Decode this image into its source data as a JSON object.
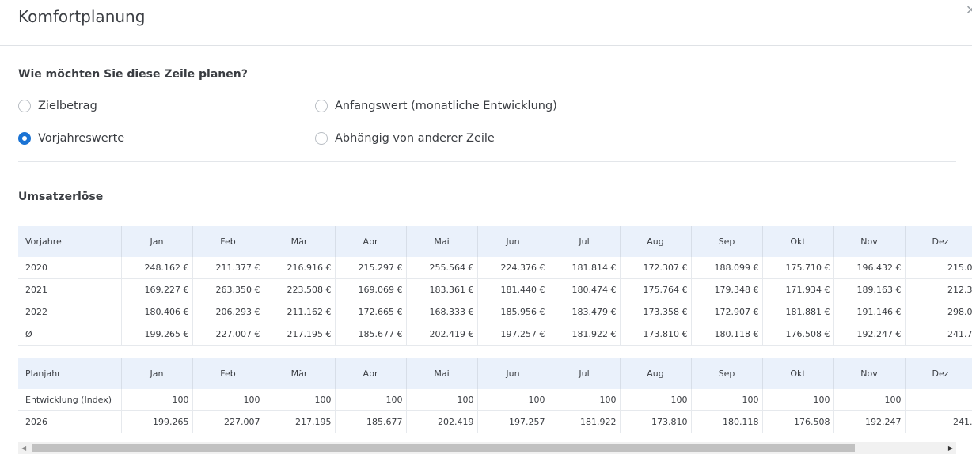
{
  "dialog": {
    "title": "Komfortplanung"
  },
  "question": "Wie möchten Sie diese Zeile planen?",
  "options": [
    {
      "label": "Zielbetrag",
      "selected": false
    },
    {
      "label": "Anfangswert (monatliche Entwicklung)",
      "selected": false
    },
    {
      "label": "Vorjahreswerte",
      "selected": true
    },
    {
      "label": "Abhängig von anderer Zeile",
      "selected": false
    }
  ],
  "section_title": "Umsatzerlöse",
  "months": [
    "Jan",
    "Feb",
    "Mär",
    "Apr",
    "Mai",
    "Jun",
    "Jul",
    "Aug",
    "Sep",
    "Okt",
    "Nov",
    "Dez"
  ],
  "previous_years": {
    "header": "Vorjahre",
    "rows": [
      {
        "label": "2020",
        "values": [
          "248.162 €",
          "211.377 €",
          "216.916 €",
          "215.297 €",
          "255.564 €",
          "224.376 €",
          "181.814 €",
          "172.307 €",
          "188.099 €",
          "175.710 €",
          "196.432 €",
          "215.0"
        ]
      },
      {
        "label": "2021",
        "values": [
          "169.227 €",
          "263.350 €",
          "223.508 €",
          "169.069 €",
          "183.361 €",
          "181.440 €",
          "180.474 €",
          "175.764 €",
          "179.348 €",
          "171.934 €",
          "189.163 €",
          "212.3"
        ]
      },
      {
        "label": "2022",
        "values": [
          "180.406 €",
          "206.293 €",
          "211.162 €",
          "172.665 €",
          "168.333 €",
          "185.956 €",
          "183.479 €",
          "173.358 €",
          "172.907 €",
          "181.881 €",
          "191.146 €",
          "298.0"
        ]
      },
      {
        "label": "Ø",
        "values": [
          "199.265 €",
          "227.007 €",
          "217.195 €",
          "185.677 €",
          "202.419 €",
          "197.257 €",
          "181.922 €",
          "173.810 €",
          "180.118 €",
          "176.508 €",
          "192.247 €",
          "241.7"
        ]
      }
    ]
  },
  "plan_year": {
    "header": "Planjahr",
    "rows": [
      {
        "label": "Entwicklung (Index)",
        "values": [
          "100",
          "100",
          "100",
          "100",
          "100",
          "100",
          "100",
          "100",
          "100",
          "100",
          "100",
          ""
        ]
      },
      {
        "label": "2026",
        "values": [
          "199.265",
          "227.007",
          "217.195",
          "185.677",
          "202.419",
          "197.257",
          "181.922",
          "173.810",
          "180.118",
          "176.508",
          "192.247",
          "241."
        ]
      }
    ]
  },
  "icons": {
    "close": "close-icon",
    "scroll_left": "arrow-left-icon",
    "scroll_right": "arrow-right-icon"
  },
  "colors": {
    "accent": "#1a73d4",
    "table_header": "#eaf1fb"
  }
}
